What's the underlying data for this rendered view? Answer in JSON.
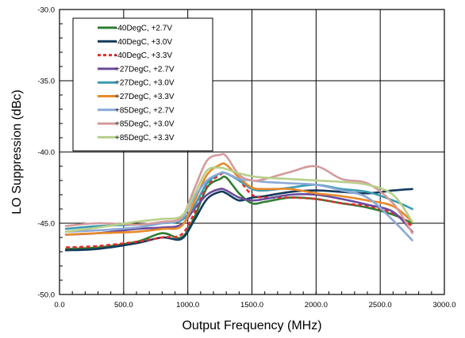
{
  "chart_data": {
    "type": "line",
    "title": "",
    "xlabel": "Output Frequency (MHz)",
    "ylabel": "LO Suppression (dBc)",
    "xlim": [
      0,
      3000
    ],
    "ylim": [
      -50,
      -30
    ],
    "x_ticks": [
      0,
      500,
      1000,
      1500,
      2000,
      2500,
      3000
    ],
    "y_ticks": [
      -50,
      -45,
      -40,
      -35,
      -30
    ],
    "x_tick_labels": [
      "0.0",
      "500.0",
      "1000.0",
      "1500.0",
      "2000.0",
      "2500.0",
      "3000.0"
    ],
    "y_tick_labels": [
      "-50.0",
      "-45.0",
      "-40.0",
      "-35.0",
      "-30.0"
    ],
    "grid": "major",
    "minor_ticks": true,
    "legend_position": "top-left",
    "x": [
      50,
      300,
      600,
      800,
      950,
      1050,
      1150,
      1250,
      1300,
      1400,
      1500,
      1600,
      1800,
      2000,
      2200,
      2400,
      2600,
      2750
    ],
    "series": [
      {
        "name": "-40DegC, +2.7V",
        "color": "#2e7d32",
        "dash": "solid",
        "values": [
          -46.8,
          -46.7,
          -46.3,
          -45.7,
          -46.0,
          -44.6,
          -42.5,
          -41.9,
          -41.8,
          -42.9,
          -43.6,
          -43.5,
          -43.2,
          -43.3,
          -43.6,
          -43.9,
          -44.4,
          -45.0
        ]
      },
      {
        "name": "-40DegC, +3.0V",
        "color": "#123a5c",
        "dash": "solid",
        "values": [
          -46.9,
          -46.8,
          -46.4,
          -46.0,
          -46.1,
          -44.8,
          -43.3,
          -42.8,
          -42.9,
          -43.4,
          -43.2,
          -43.1,
          -42.8,
          -42.7,
          -42.8,
          -42.9,
          -42.7,
          -42.6
        ]
      },
      {
        "name": "-40DegC, +3.3V",
        "color": "#e32b2b",
        "dash": "dashed",
        "values": [
          -46.7,
          -46.6,
          -46.3,
          -46.0,
          -45.8,
          -44.3,
          -42.4,
          -41.6,
          -41.5,
          -42.0,
          -43.0,
          -43.2,
          -43.2,
          -43.3,
          -43.6,
          -43.8,
          -44.3,
          -45.2
        ]
      },
      {
        "name": "+27DegC, +2.7V",
        "color": "#6a4a9c",
        "dash": "solid",
        "values": [
          -45.8,
          -45.7,
          -45.4,
          -45.3,
          -45.1,
          -44.0,
          -43.0,
          -42.6,
          -42.7,
          -43.2,
          -43.4,
          -43.3,
          -43.0,
          -43.0,
          -43.3,
          -43.7,
          -44.2,
          -45.6
        ]
      },
      {
        "name": "+27DegC, +3.0V",
        "color": "#3a9bb3",
        "dash": "solid",
        "values": [
          -45.4,
          -45.2,
          -45.1,
          -45.0,
          -44.8,
          -43.8,
          -42.2,
          -41.5,
          -41.5,
          -42.0,
          -42.6,
          -42.7,
          -42.5,
          -42.3,
          -42.6,
          -42.8,
          -43.4,
          -44.0
        ]
      },
      {
        "name": "+27DegC, +3.3V",
        "color": "#e8892b",
        "dash": "solid",
        "values": [
          -45.8,
          -45.7,
          -45.6,
          -45.4,
          -45.2,
          -43.5,
          -41.6,
          -40.9,
          -40.9,
          -41.8,
          -42.5,
          -42.6,
          -42.6,
          -42.9,
          -43.1,
          -43.4,
          -43.8,
          -44.9
        ]
      },
      {
        "name": "+85DegC, +2.7V",
        "color": "#8aa8d6",
        "dash": "solid",
        "values": [
          -45.6,
          -45.5,
          -45.3,
          -45.0,
          -44.7,
          -43.2,
          -42.0,
          -41.5,
          -41.5,
          -41.9,
          -42.0,
          -42.1,
          -42.2,
          -42.3,
          -42.7,
          -43.2,
          -44.8,
          -46.2
        ]
      },
      {
        "name": "+85DegC, +3.0V",
        "color": "#d59a9a",
        "dash": "solid",
        "values": [
          -45.2,
          -45.0,
          -45.1,
          -44.9,
          -44.6,
          -42.6,
          -40.6,
          -40.2,
          -40.3,
          -41.6,
          -42.0,
          -41.9,
          -41.4,
          -41.0,
          -41.9,
          -42.2,
          -43.6,
          -45.7
        ]
      },
      {
        "name": "+85DegC, +3.3V",
        "color": "#b7cf8a",
        "dash": "solid",
        "values": [
          -45.6,
          -45.3,
          -44.9,
          -44.7,
          -44.5,
          -43.0,
          -41.3,
          -41.1,
          -41.2,
          -41.5,
          -41.7,
          -41.8,
          -41.9,
          -42.0,
          -42.1,
          -42.3,
          -43.0,
          -44.9
        ]
      }
    ]
  }
}
